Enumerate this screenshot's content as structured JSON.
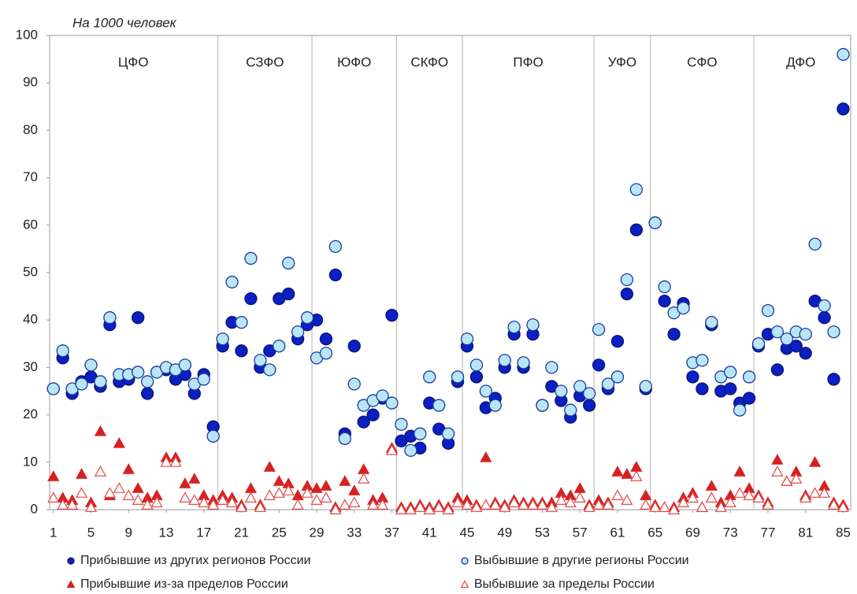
{
  "chart_data": {
    "type": "scatter",
    "y_label": "На 1000 человек",
    "x": [
      1,
      2,
      3,
      4,
      5,
      6,
      7,
      8,
      9,
      10,
      11,
      12,
      13,
      14,
      15,
      16,
      17,
      18,
      19,
      20,
      21,
      22,
      23,
      24,
      25,
      26,
      27,
      28,
      29,
      30,
      31,
      32,
      33,
      34,
      35,
      36,
      37,
      38,
      39,
      40,
      41,
      42,
      43,
      44,
      45,
      46,
      47,
      48,
      49,
      50,
      51,
      52,
      53,
      54,
      55,
      56,
      57,
      58,
      59,
      60,
      61,
      62,
      63,
      64,
      65,
      66,
      67,
      68,
      69,
      70,
      71,
      72,
      73,
      74,
      75,
      76,
      77,
      78,
      79,
      80,
      81,
      82,
      83,
      84,
      85
    ],
    "xlim": [
      0.6,
      85.8
    ],
    "xticks": [
      1,
      5,
      9,
      13,
      17,
      21,
      25,
      29,
      33,
      37,
      41,
      45,
      49,
      53,
      57,
      61,
      65,
      69,
      73,
      77,
      81,
      85
    ],
    "ylim": [
      0,
      100
    ],
    "yticks": [
      0,
      10,
      20,
      30,
      40,
      50,
      60,
      70,
      80,
      90,
      100
    ],
    "districts": [
      {
        "name": "ЦФО",
        "start": 1,
        "end": 18
      },
      {
        "name": "СЗФО",
        "start": 19,
        "end": 28
      },
      {
        "name": "ЮФО",
        "start": 29,
        "end": 37
      },
      {
        "name": "СКФО",
        "start": 38,
        "end": 44
      },
      {
        "name": "ПФО",
        "start": 45,
        "end": 58
      },
      {
        "name": "УФО",
        "start": 59,
        "end": 64
      },
      {
        "name": "СФО",
        "start": 65,
        "end": 75
      },
      {
        "name": "ДФО",
        "start": 76,
        "end": 85
      }
    ],
    "series": [
      {
        "name": "Прибывшие из других регионов России",
        "color": "#0a1fc4",
        "marker": "circle",
        "filled": true,
        "values": [
          25.5,
          32,
          24.5,
          27,
          28,
          26,
          39,
          27,
          27.5,
          40.5,
          24.5,
          29,
          29.5,
          27.5,
          28.5,
          24.5,
          28.5,
          17.5,
          34.5,
          39.5,
          33.5,
          44.5,
          30,
          33.5,
          44.5,
          45.5,
          36,
          39,
          40,
          36,
          49.5,
          16,
          34.5,
          18.5,
          20,
          23.5,
          41,
          14.5,
          15.5,
          13,
          22.5,
          17,
          14,
          27,
          34.5,
          28,
          21.5,
          23.5,
          30,
          37,
          30,
          37,
          22,
          26,
          23,
          19.5,
          24,
          22,
          30.5,
          25.5,
          35.5,
          45.5,
          59,
          25.5,
          60.5,
          44,
          37,
          43.5,
          28,
          25.5,
          39,
          25,
          25.5,
          22.5,
          23.5,
          34.5,
          37,
          29.5,
          34,
          34.5,
          33,
          44,
          40.5,
          27.5,
          84.5
        ]
      },
      {
        "name": "Выбывшие в другие регионы России",
        "color": "#b9e6f7",
        "marker": "circle",
        "filled": false,
        "values": [
          25.5,
          33.5,
          25.5,
          26.5,
          30.5,
          27,
          40.5,
          28.5,
          28.5,
          29,
          27,
          29,
          30,
          29.5,
          30.5,
          26.5,
          27.5,
          15.5,
          36,
          48,
          39.5,
          53,
          31.5,
          29.5,
          34.5,
          52,
          37.5,
          40.5,
          32,
          33,
          55.5,
          15,
          26.5,
          22,
          23,
          24,
          22.5,
          18,
          12.5,
          16,
          28,
          22,
          16,
          28,
          36,
          30.5,
          25,
          22,
          31.5,
          38.5,
          31,
          39,
          22,
          30,
          25,
          21,
          26,
          24.5,
          38,
          26.5,
          28,
          48.5,
          67.5,
          26,
          60.5,
          47,
          41.5,
          42.5,
          31,
          31.5,
          39.5,
          28,
          29,
          21,
          28,
          35,
          42,
          37.5,
          36,
          37.5,
          37,
          56,
          43,
          37.5,
          96
        ]
      },
      {
        "name": "Прибывшие из-за пределов России",
        "color": "#d42222",
        "marker": "triangle",
        "filled": true,
        "values": [
          7,
          2.5,
          2,
          7.5,
          1.5,
          16.5,
          3,
          14,
          8.5,
          4.5,
          2.5,
          3,
          11,
          11,
          5.5,
          6.5,
          3,
          2,
          3,
          2.5,
          1,
          4.5,
          1,
          9,
          6,
          5.5,
          3,
          5,
          4.5,
          5,
          0.5,
          6,
          4,
          8.5,
          2,
          2.5,
          13,
          0.5,
          0.5,
          1,
          0.5,
          1,
          0.5,
          2.5,
          2,
          1,
          11,
          1.5,
          1,
          2,
          1.5,
          1.5,
          1.5,
          1.5,
          3.5,
          3,
          4.5,
          1,
          2,
          1.5,
          8,
          7.5,
          9,
          3,
          1,
          0.5,
          0.5,
          2.5,
          3.5,
          0.5,
          5,
          1.5,
          3,
          8,
          4.5,
          3,
          1.5,
          10.5,
          6,
          8,
          3,
          10,
          5,
          1.5,
          1
        ]
      },
      {
        "name": "Выбывшие за пределы России",
        "color": "#e04848",
        "marker": "triangle",
        "filled": false,
        "values": [
          2.5,
          1,
          1,
          3.5,
          0.5,
          8,
          3.5,
          4.5,
          3,
          2,
          1,
          1.5,
          10,
          10,
          2.5,
          2,
          1.5,
          1,
          2,
          1.5,
          0.5,
          2.5,
          0.5,
          3,
          3.5,
          4,
          1,
          3.5,
          2,
          2.5,
          0,
          1,
          1.5,
          6.5,
          1,
          1,
          12.5,
          0,
          0,
          0.5,
          0,
          0.5,
          0,
          1.5,
          1,
          0.5,
          1,
          1,
          0.5,
          1.5,
          1,
          1,
          1,
          0.5,
          2,
          1.5,
          2.5,
          0.5,
          1,
          1,
          3,
          2,
          7,
          1,
          0.5,
          0.5,
          0,
          1.5,
          2.5,
          0.5,
          2.5,
          0.5,
          1.5,
          3.5,
          3,
          2.5,
          1,
          8,
          6,
          6.5,
          2.5,
          3.5,
          3.5,
          1,
          0.5
        ]
      }
    ]
  }
}
